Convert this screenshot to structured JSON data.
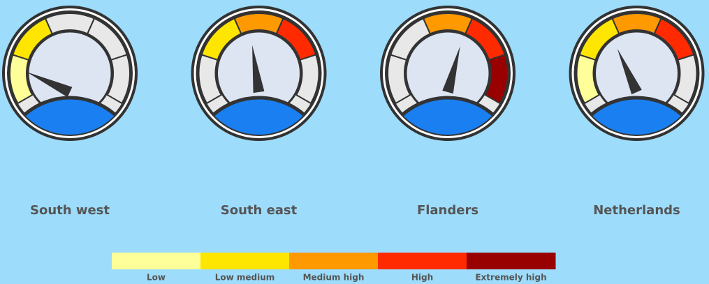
{
  "chart_data": {
    "type": "gauge",
    "legend": {
      "categories": [
        "Low",
        "Low medium",
        "Medium high",
        "High",
        "Extremely high"
      ],
      "colors": [
        "#ffff99",
        "#ffe600",
        "#ff9900",
        "#ff2a00",
        "#990000"
      ]
    },
    "inactive_color": "#e8e8e8",
    "gauges": [
      {
        "label": "South west",
        "needle_angle": -65,
        "lit": [
          0,
          1
        ]
      },
      {
        "label": "South east",
        "needle_angle": -8,
        "lit": [
          1,
          2,
          3
        ]
      },
      {
        "label": "Flanders",
        "needle_angle": 15,
        "lit": [
          2,
          3,
          4
        ]
      },
      {
        "label": "Netherlands",
        "needle_angle": -24,
        "lit": [
          0,
          1,
          2,
          3
        ]
      }
    ]
  }
}
